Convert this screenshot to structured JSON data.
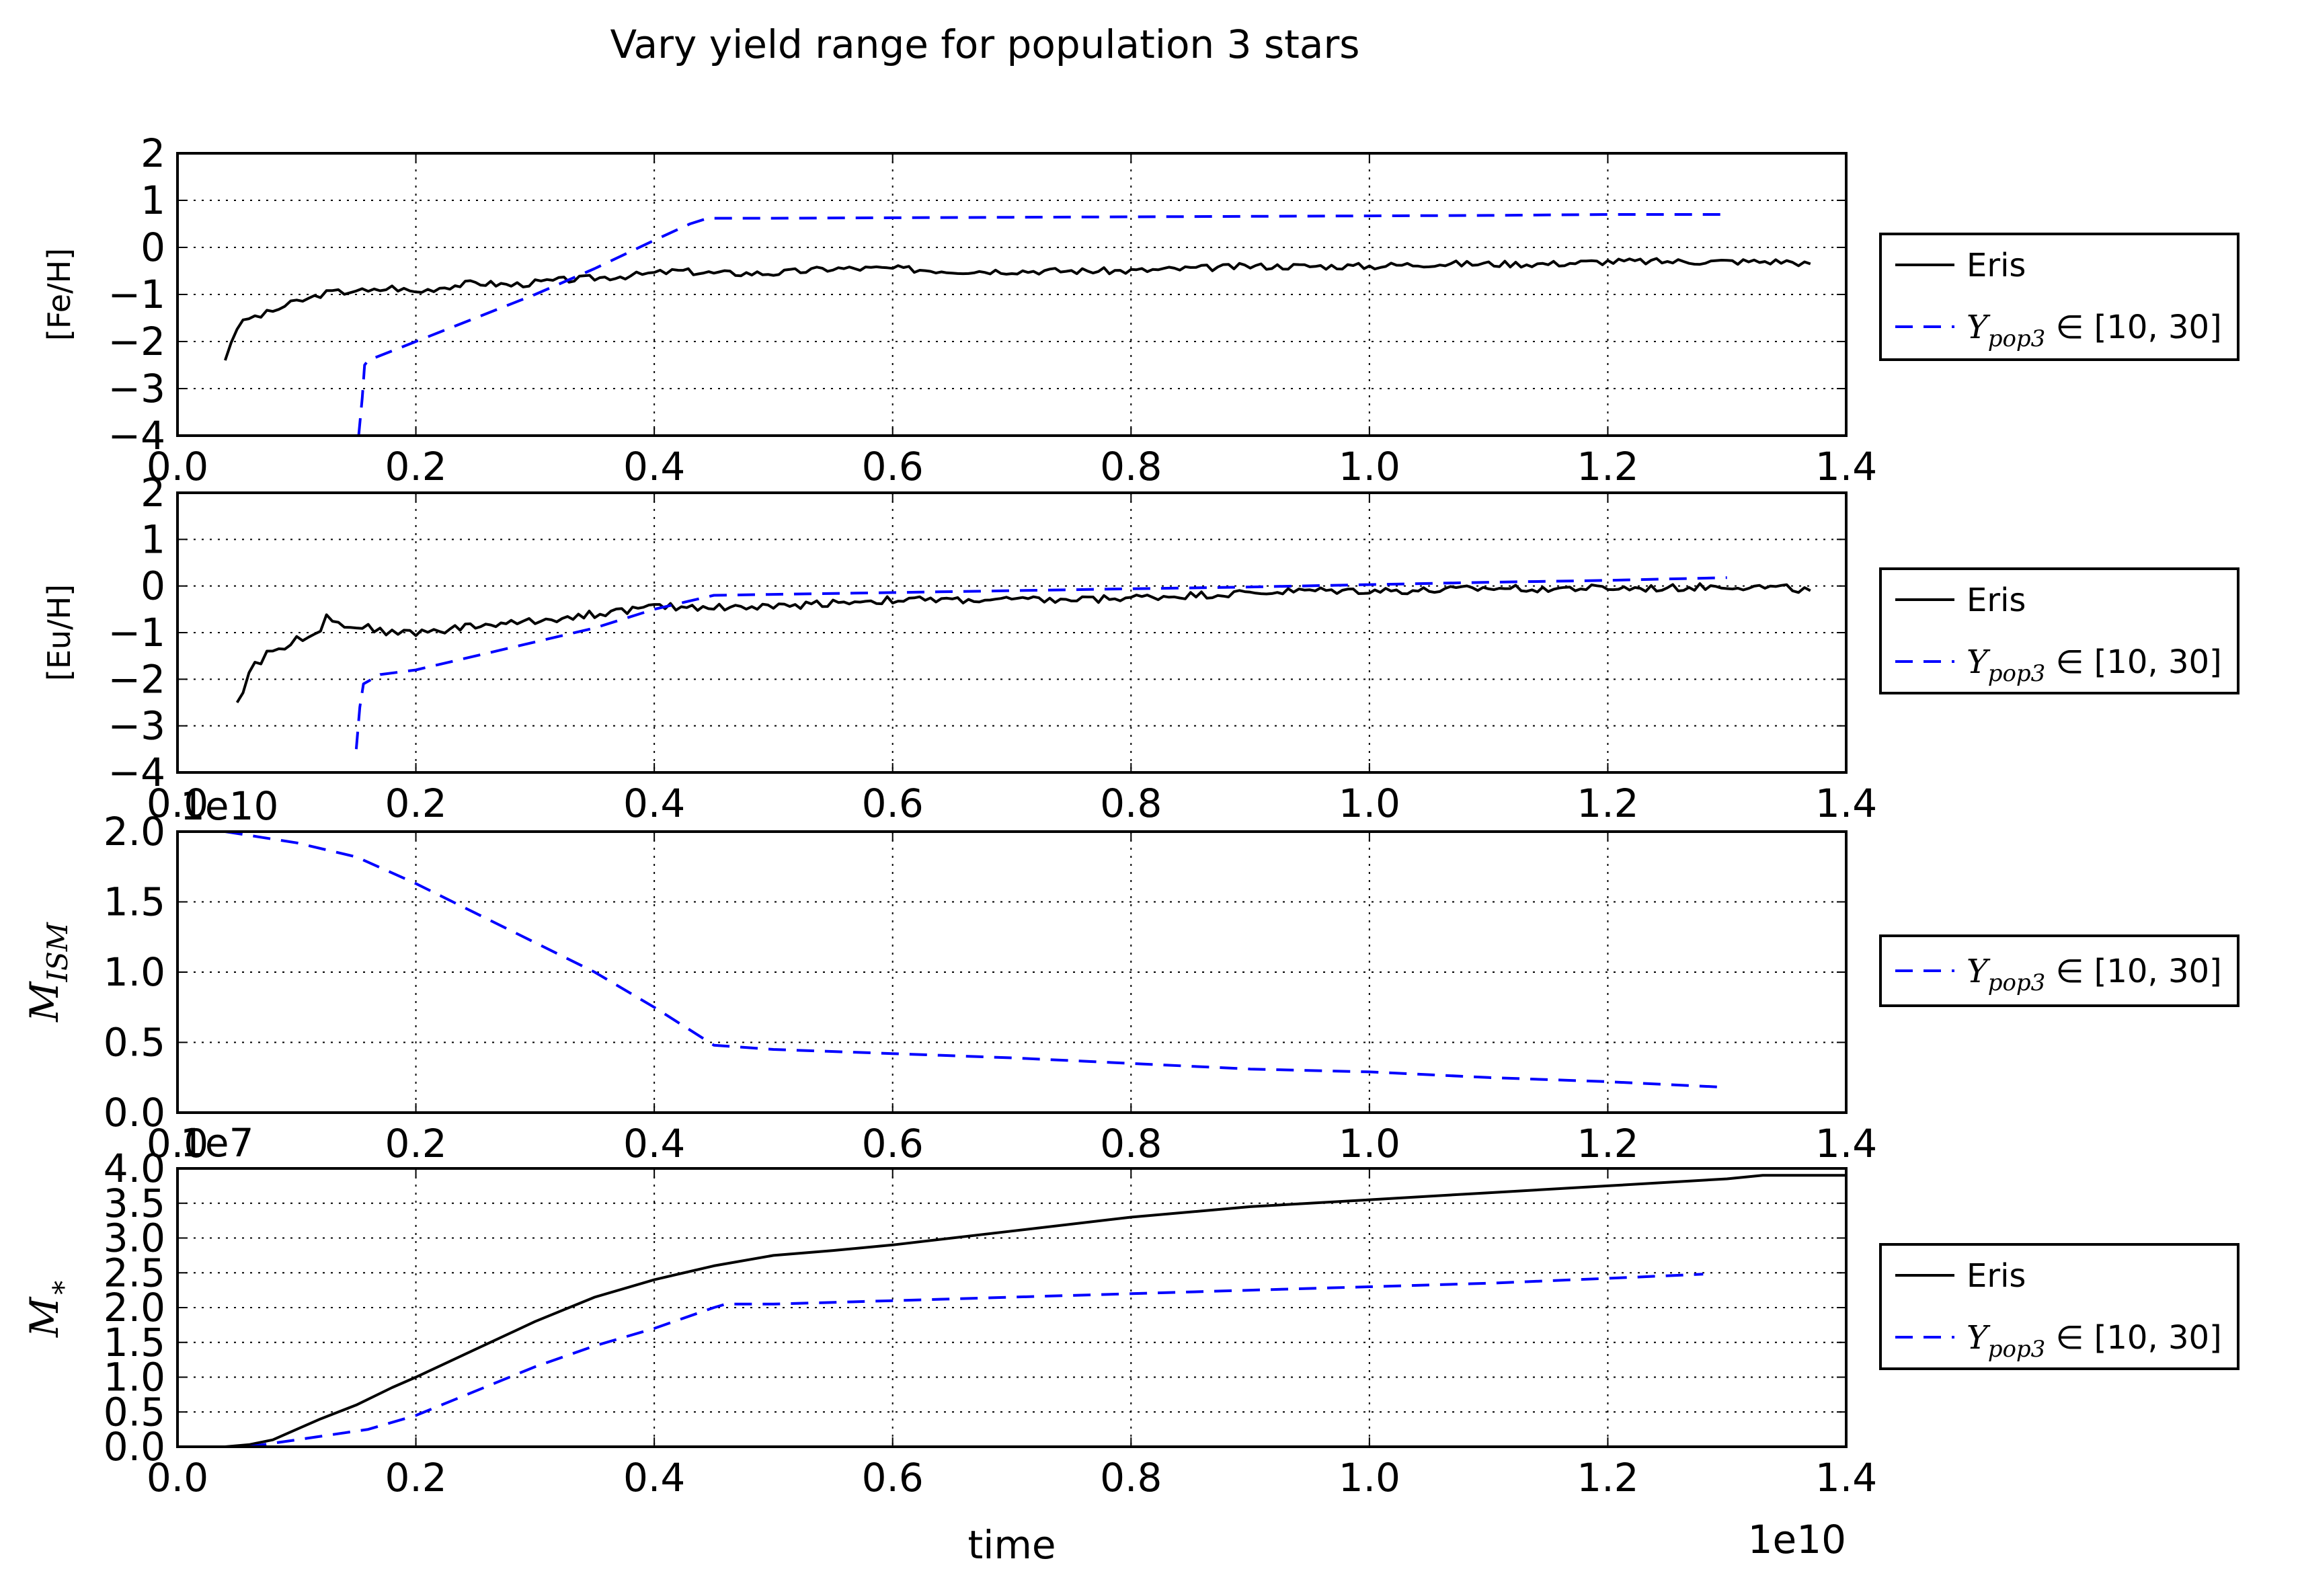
{
  "figure": {
    "title": "Vary yield range for population 3 stars",
    "x_label": "time",
    "x_offset_label": "1e10",
    "colors": {
      "eris": "#000000",
      "model": "#0000ff",
      "grid": "#000000"
    }
  },
  "chart_data": [
    {
      "type": "line",
      "ylabel": "[Fe/H]",
      "xlim": [
        0,
        14000000000
      ],
      "ylim": [
        -4,
        2
      ],
      "xticks": [
        "0.0",
        "0.2",
        "0.4",
        "0.6",
        "0.8",
        "1.0",
        "1.2",
        "1.4"
      ],
      "yticks": [
        "2",
        "1",
        "0",
        "−1",
        "−2",
        "−3",
        "−4"
      ],
      "offset_label": "",
      "grid": true,
      "legend_position": "right-outside",
      "legend": [
        "Eris",
        "Ypop3 ∈ [10, 30]"
      ],
      "series": [
        {
          "name": "Eris",
          "style": "solid",
          "noise": 0.07,
          "x": [
            0.04,
            0.045,
            0.05,
            0.06,
            0.07,
            0.08,
            0.09,
            0.1,
            0.11,
            0.12,
            0.13,
            0.14,
            0.15,
            0.16,
            0.17,
            0.18,
            0.19,
            0.2,
            0.22,
            0.25,
            0.28,
            0.3,
            0.32,
            0.35,
            0.38,
            0.4,
            0.42,
            0.45,
            0.5,
            0.55,
            0.6,
            0.65,
            0.7,
            0.75,
            0.8,
            0.85,
            0.9,
            0.95,
            1.0,
            1.05,
            1.1,
            1.15,
            1.2,
            1.25,
            1.3,
            1.35,
            1.37
          ],
          "y": [
            -2.4,
            -2.0,
            -1.7,
            -1.5,
            -1.45,
            -1.35,
            -1.25,
            -1.15,
            -1.1,
            -1.0,
            -0.95,
            -0.95,
            -0.9,
            -0.95,
            -0.9,
            -0.85,
            -0.9,
            -0.95,
            -0.85,
            -0.75,
            -0.8,
            -0.75,
            -0.7,
            -0.65,
            -0.6,
            -0.55,
            -0.5,
            -0.55,
            -0.55,
            -0.45,
            -0.45,
            -0.5,
            -0.5,
            -0.5,
            -0.5,
            -0.45,
            -0.4,
            -0.4,
            -0.4,
            -0.35,
            -0.35,
            -0.35,
            -0.3,
            -0.3,
            -0.3,
            -0.3,
            -0.35
          ]
        },
        {
          "name": "Ypop3 ∈ [10, 30]",
          "style": "dashed",
          "noise": 0,
          "x": [
            0.152,
            0.155,
            0.157,
            0.16,
            0.2,
            0.25,
            0.3,
            0.35,
            0.4,
            0.43,
            0.445,
            0.5,
            0.6,
            0.7,
            0.8,
            0.9,
            1.0,
            1.1,
            1.2,
            1.3
          ],
          "y": [
            -4.0,
            -3.2,
            -2.5,
            -2.4,
            -2.0,
            -1.5,
            -1.0,
            -0.45,
            0.15,
            0.5,
            0.62,
            0.62,
            0.63,
            0.64,
            0.65,
            0.66,
            0.67,
            0.68,
            0.7,
            0.7
          ]
        }
      ]
    },
    {
      "type": "line",
      "ylabel": "[Eu/H]",
      "xlim": [
        0,
        14000000000
      ],
      "ylim": [
        -4,
        2
      ],
      "xticks": [
        "0.0",
        "0.2",
        "0.4",
        "0.6",
        "0.8",
        "1.0",
        "1.2",
        "1.4"
      ],
      "yticks": [
        "2",
        "1",
        "0",
        "−1",
        "−2",
        "−3",
        "−4"
      ],
      "offset_label": "",
      "grid": true,
      "legend_position": "right-outside",
      "legend": [
        "Eris",
        "Ypop3 ∈ [10, 30]"
      ],
      "series": [
        {
          "name": "Eris",
          "style": "solid",
          "noise": 0.08,
          "x": [
            0.05,
            0.055,
            0.06,
            0.065,
            0.07,
            0.08,
            0.09,
            0.1,
            0.11,
            0.12,
            0.125,
            0.13,
            0.14,
            0.15,
            0.16,
            0.18,
            0.2,
            0.22,
            0.25,
            0.28,
            0.3,
            0.35,
            0.4,
            0.45,
            0.5,
            0.55,
            0.6,
            0.65,
            0.7,
            0.75,
            0.8,
            0.85,
            0.9,
            0.95,
            1.0,
            1.05,
            1.1,
            1.15,
            1.2,
            1.25,
            1.3,
            1.35,
            1.37
          ],
          "y": [
            -2.5,
            -2.3,
            -1.8,
            -1.65,
            -1.6,
            -1.35,
            -1.3,
            -1.15,
            -1.05,
            -0.9,
            -0.6,
            -0.75,
            -0.85,
            -0.85,
            -0.9,
            -1.0,
            -1.0,
            -0.95,
            -0.85,
            -0.8,
            -0.75,
            -0.6,
            -0.45,
            -0.45,
            -0.45,
            -0.35,
            -0.3,
            -0.3,
            -0.3,
            -0.3,
            -0.25,
            -0.2,
            -0.15,
            -0.1,
            -0.1,
            -0.1,
            -0.05,
            -0.05,
            -0.05,
            -0.05,
            0.0,
            -0.05,
            -0.1
          ]
        },
        {
          "name": "Ypop3 ∈ [10, 30]",
          "style": "dashed",
          "noise": 0,
          "x": [
            0.15,
            0.153,
            0.156,
            0.17,
            0.2,
            0.25,
            0.3,
            0.35,
            0.4,
            0.45,
            0.5,
            0.6,
            0.7,
            0.8,
            0.9,
            1.0,
            1.1,
            1.2,
            1.3
          ],
          "y": [
            -3.5,
            -2.6,
            -2.1,
            -1.9,
            -1.8,
            -1.5,
            -1.2,
            -0.9,
            -0.5,
            -0.2,
            -0.18,
            -0.14,
            -0.1,
            -0.06,
            -0.02,
            0.03,
            0.08,
            0.12,
            0.18
          ]
        }
      ]
    },
    {
      "type": "line",
      "ylabel": "M_ISM",
      "xlim": [
        0,
        14000000000
      ],
      "ylim": [
        0,
        20000000000
      ],
      "xticks": [
        "0.0",
        "0.2",
        "0.4",
        "0.6",
        "0.8",
        "1.0",
        "1.2",
        "1.4"
      ],
      "yticks": [
        "2.0",
        "1.5",
        "1.0",
        "0.5",
        "0.0"
      ],
      "offset_label": "1e10",
      "grid": true,
      "legend_position": "right-outside",
      "legend": [
        "Ypop3 ∈ [10, 30]"
      ],
      "series": [
        {
          "name": "Ypop3 ∈ [10, 30]",
          "style": "dashed",
          "noise": 0,
          "x": [
            0.04,
            0.1,
            0.15,
            0.2,
            0.25,
            0.3,
            0.35,
            0.4,
            0.45,
            0.5,
            0.6,
            0.7,
            0.8,
            0.9,
            1.0,
            1.1,
            1.2,
            1.3
          ],
          "y": [
            2.0,
            1.92,
            1.82,
            1.63,
            1.42,
            1.21,
            1.0,
            0.75,
            0.48,
            0.45,
            0.42,
            0.39,
            0.35,
            0.31,
            0.29,
            0.25,
            0.22,
            0.18
          ]
        }
      ]
    },
    {
      "type": "line",
      "ylabel": "M_*",
      "xlim": [
        0,
        14000000000
      ],
      "ylim": [
        0,
        40000000
      ],
      "xticks": [
        "0.0",
        "0.2",
        "0.4",
        "0.6",
        "0.8",
        "1.0",
        "1.2",
        "1.4"
      ],
      "yticks": [
        "4.0",
        "3.5",
        "3.0",
        "2.5",
        "2.0",
        "1.5",
        "1.0",
        "0.5",
        "0.0"
      ],
      "offset_label": "1e7",
      "grid": true,
      "legend_position": "right-outside",
      "legend": [
        "Eris",
        "Ypop3 ∈ [10, 30]"
      ],
      "series": [
        {
          "name": "Eris",
          "style": "solid",
          "noise": 0,
          "x": [
            0.0,
            0.04,
            0.06,
            0.08,
            0.1,
            0.12,
            0.15,
            0.18,
            0.2,
            0.25,
            0.3,
            0.35,
            0.4,
            0.45,
            0.5,
            0.55,
            0.6,
            0.7,
            0.8,
            0.9,
            1.0,
            1.1,
            1.2,
            1.3,
            1.33,
            1.4
          ],
          "y": [
            0.0,
            0.0,
            0.03,
            0.1,
            0.25,
            0.4,
            0.6,
            0.85,
            1.0,
            1.4,
            1.8,
            2.15,
            2.4,
            2.6,
            2.75,
            2.82,
            2.9,
            3.1,
            3.3,
            3.45,
            3.55,
            3.65,
            3.75,
            3.85,
            3.9,
            3.9
          ]
        },
        {
          "name": "Ypop3 ∈ [10, 30]",
          "style": "dashed",
          "noise": 0,
          "x": [
            0.06,
            0.08,
            0.1,
            0.12,
            0.14,
            0.16,
            0.2,
            0.25,
            0.3,
            0.35,
            0.4,
            0.45,
            0.46,
            0.5,
            0.6,
            0.7,
            0.8,
            0.9,
            1.0,
            1.1,
            1.2,
            1.28
          ],
          "y": [
            0.0,
            0.05,
            0.1,
            0.15,
            0.2,
            0.25,
            0.45,
            0.8,
            1.15,
            1.45,
            1.7,
            2.0,
            2.05,
            2.05,
            2.1,
            2.15,
            2.2,
            2.25,
            2.3,
            2.35,
            2.42,
            2.48
          ]
        }
      ]
    }
  ]
}
